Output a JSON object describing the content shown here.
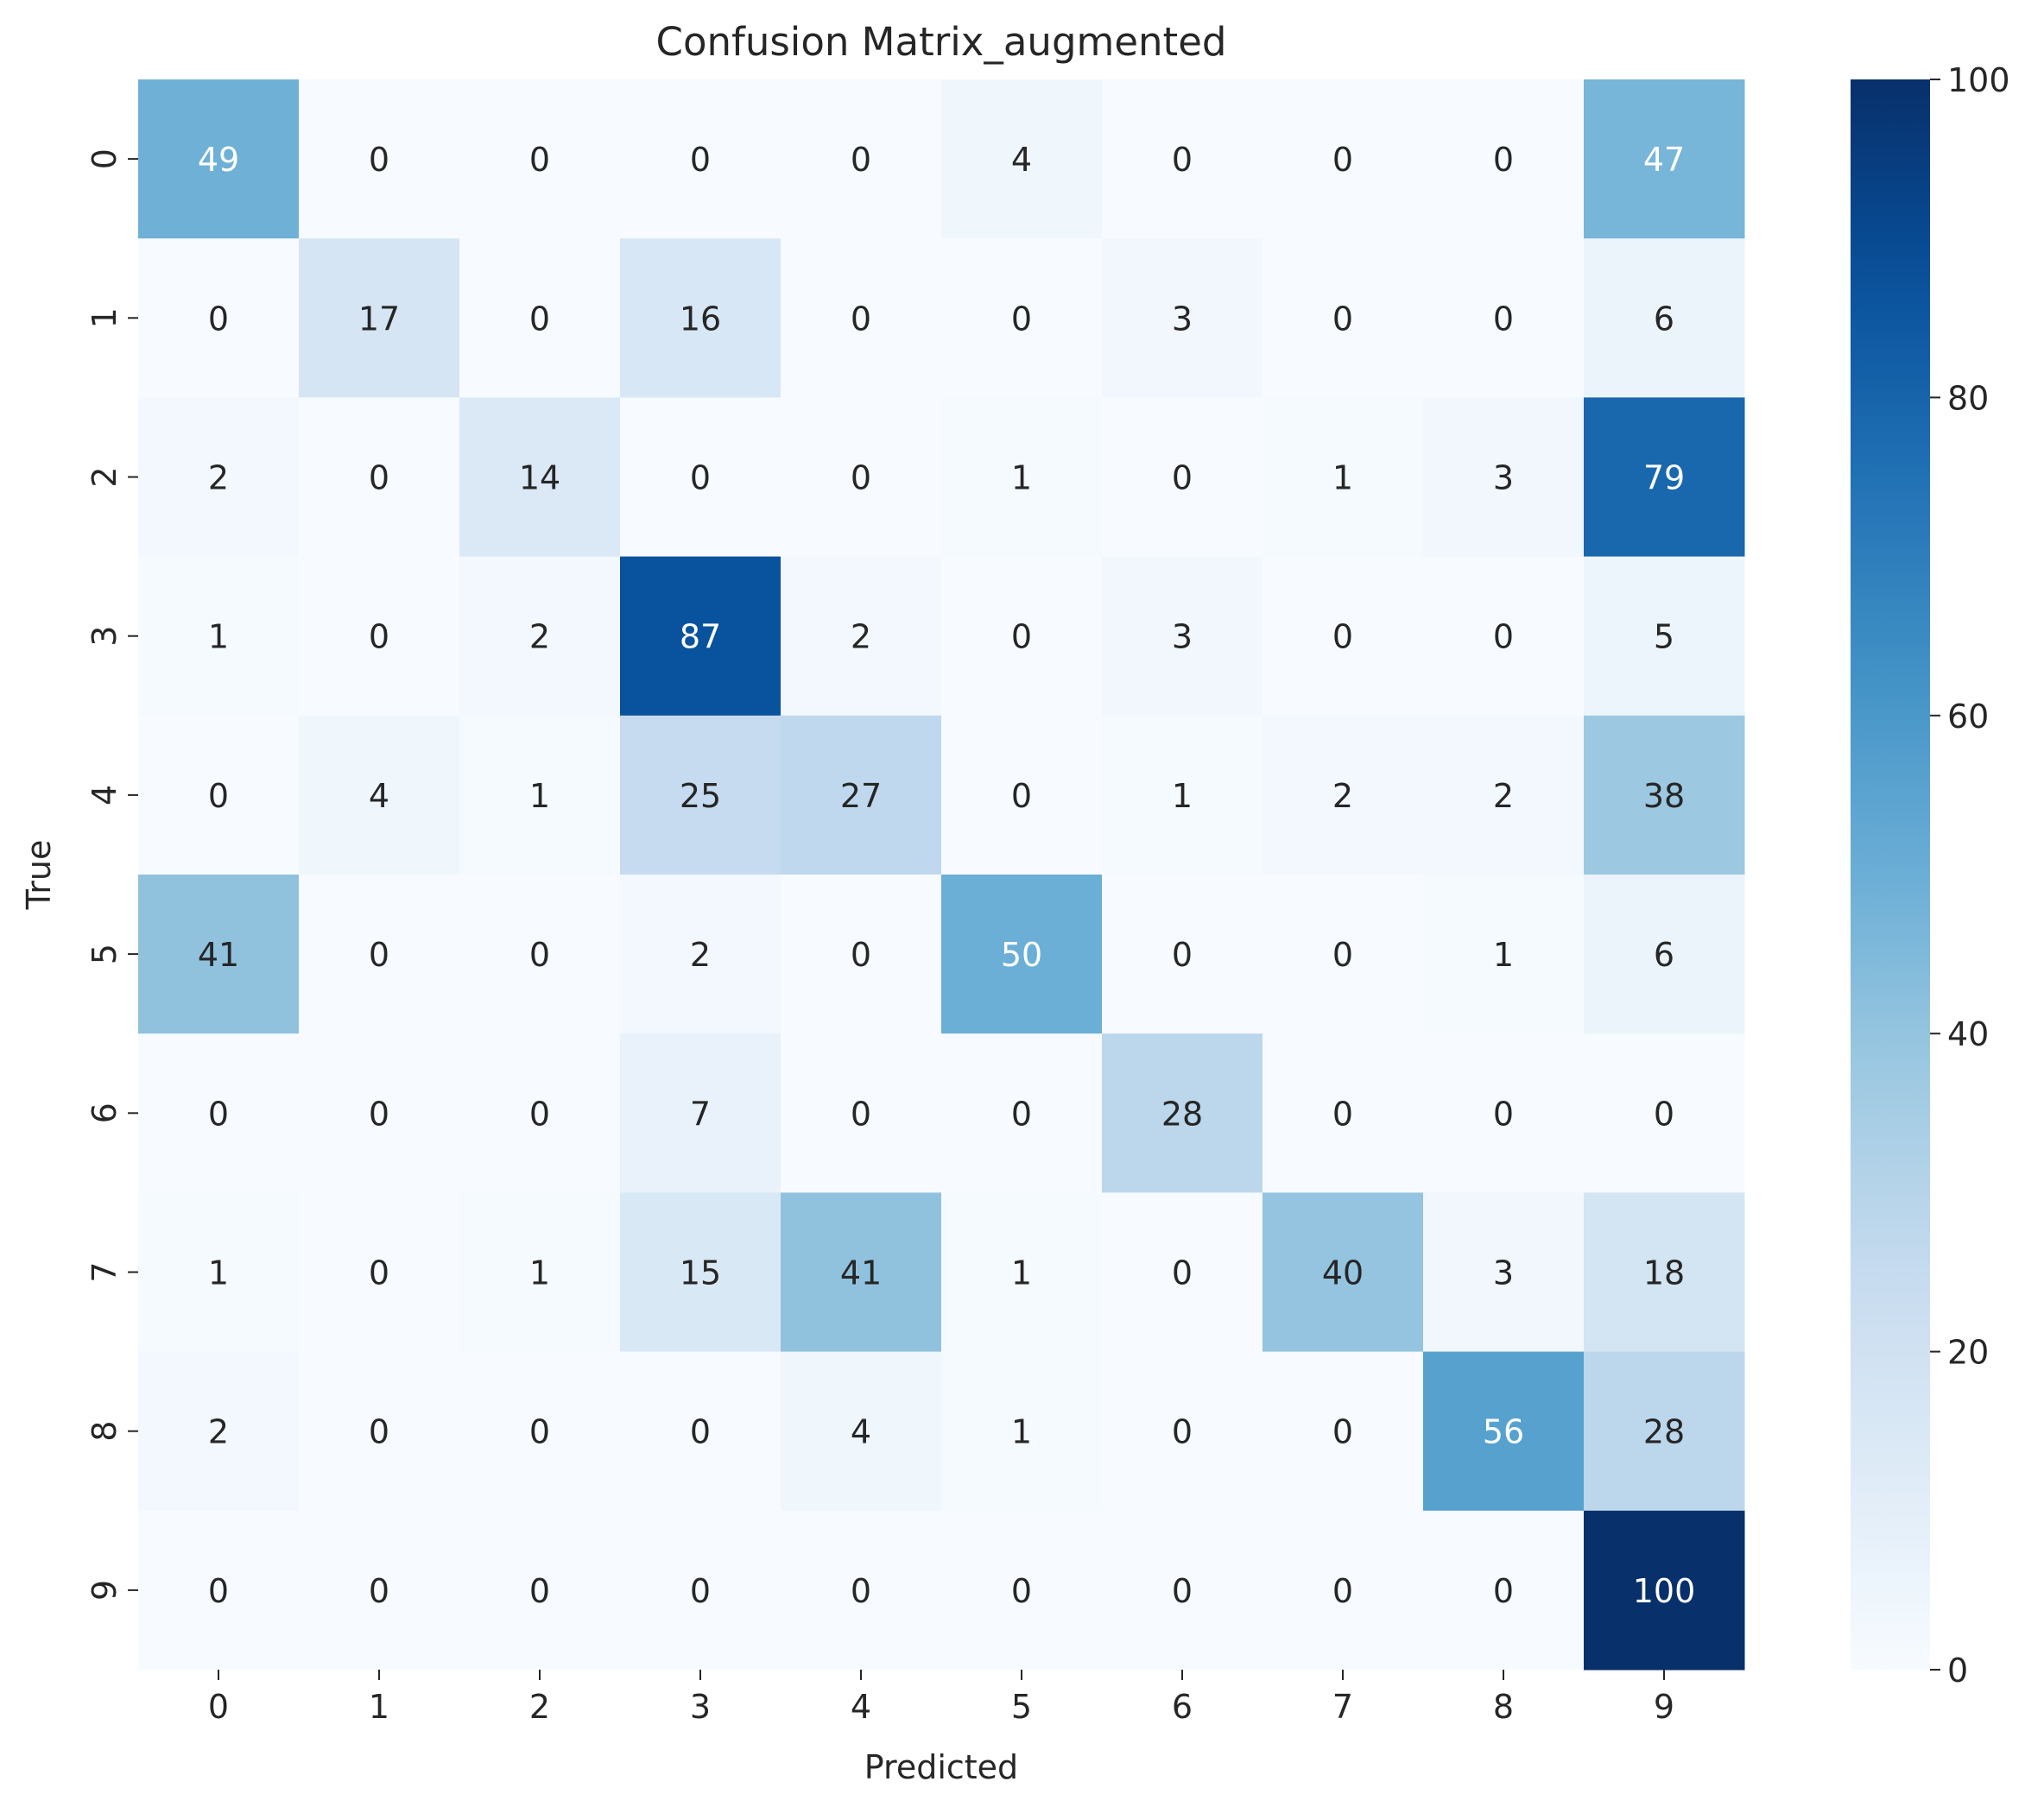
{
  "chart_data": {
    "type": "heatmap",
    "title": "Confusion Matrix_augmented",
    "xlabel": "Predicted",
    "ylabel": "True",
    "x_categories": [
      "0",
      "1",
      "2",
      "3",
      "4",
      "5",
      "6",
      "7",
      "8",
      "9"
    ],
    "y_categories": [
      "0",
      "1",
      "2",
      "3",
      "4",
      "5",
      "6",
      "7",
      "8",
      "9"
    ],
    "values": [
      [
        49,
        0,
        0,
        0,
        0,
        4,
        0,
        0,
        0,
        47
      ],
      [
        0,
        17,
        0,
        16,
        0,
        0,
        3,
        0,
        0,
        6
      ],
      [
        2,
        0,
        14,
        0,
        0,
        1,
        0,
        1,
        3,
        79
      ],
      [
        1,
        0,
        2,
        87,
        2,
        0,
        3,
        0,
        0,
        5
      ],
      [
        0,
        4,
        1,
        25,
        27,
        0,
        1,
        2,
        2,
        38
      ],
      [
        41,
        0,
        0,
        2,
        0,
        50,
        0,
        0,
        1,
        6
      ],
      [
        0,
        0,
        0,
        7,
        0,
        0,
        28,
        0,
        0,
        0
      ],
      [
        1,
        0,
        1,
        15,
        41,
        1,
        0,
        40,
        3,
        18
      ],
      [
        2,
        0,
        0,
        0,
        4,
        1,
        0,
        0,
        56,
        28
      ],
      [
        0,
        0,
        0,
        0,
        0,
        0,
        0,
        0,
        0,
        100
      ]
    ],
    "colormap": "Blues",
    "colorbar": {
      "range": [
        0,
        100
      ],
      "ticks": [
        0,
        20,
        40,
        60,
        80,
        100
      ]
    },
    "grid": false,
    "legend": "none"
  }
}
